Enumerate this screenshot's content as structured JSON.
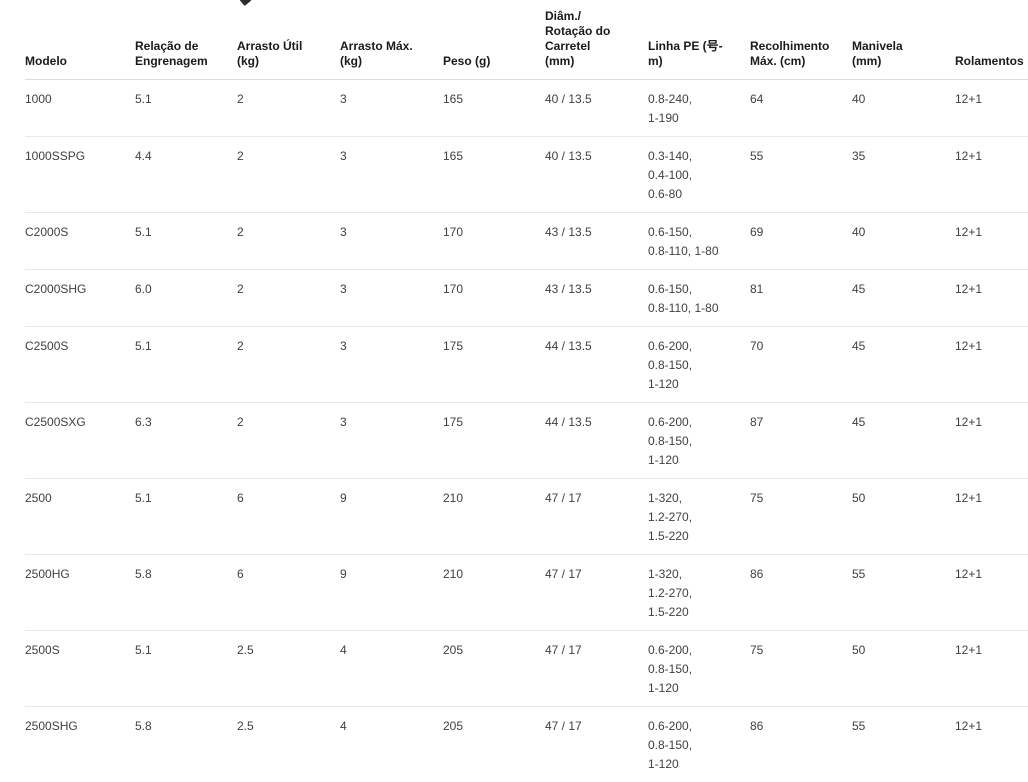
{
  "table": {
    "columns": [
      "Modelo",
      "Relação de\nEngrenagem",
      "Arrasto Útil\n(kg)",
      "Arrasto Máx.\n(kg)",
      "Peso (g)",
      "Diâm./\nRotação do\nCarretel\n(mm)",
      "Linha PE (号-\nm)",
      "Recolhimento\nMáx. (cm)",
      "Manivela\n(mm)",
      "Rolamentos"
    ],
    "rows": [
      [
        "1000",
        "5.1",
        "2",
        "3",
        "165",
        "40 / 13.5",
        "0.8-240,\n1-190",
        "64",
        "40",
        "12+1"
      ],
      [
        "1000SSPG",
        "4.4",
        "2",
        "3",
        "165",
        "40 / 13.5",
        "0.3-140,\n0.4-100,\n0.6-80",
        "55",
        "35",
        "12+1"
      ],
      [
        "C2000S",
        "5.1",
        "2",
        "3",
        "170",
        "43 / 13.5",
        "0.6-150,\n0.8-110, 1-80",
        "69",
        "40",
        "12+1"
      ],
      [
        "C2000SHG",
        "6.0",
        "2",
        "3",
        "170",
        "43 / 13.5",
        "0.6-150,\n0.8-110, 1-80",
        "81",
        "45",
        "12+1"
      ],
      [
        "C2500S",
        "5.1",
        "2",
        "3",
        "175",
        "44 / 13.5",
        "0.6-200,\n0.8-150,\n1-120",
        "70",
        "45",
        "12+1"
      ],
      [
        "C2500SXG",
        "6.3",
        "2",
        "3",
        "175",
        "44 / 13.5",
        "0.6-200,\n0.8-150,\n1-120",
        "87",
        "45",
        "12+1"
      ],
      [
        "2500",
        "5.1",
        "6",
        "9",
        "210",
        "47 / 17",
        "1-320,\n1.2-270,\n1.5-220",
        "75",
        "50",
        "12+1"
      ],
      [
        "2500HG",
        "5.8",
        "6",
        "9",
        "210",
        "47 / 17",
        "1-320,\n1.2-270,\n1.5-220",
        "86",
        "55",
        "12+1"
      ],
      [
        "2500S",
        "5.1",
        "2.5",
        "4",
        "205",
        "47 / 17",
        "0.6-200,\n0.8-150,\n1-120",
        "75",
        "50",
        "12+1"
      ],
      [
        "2500SHG",
        "5.8",
        "2.5",
        "4",
        "205",
        "47 / 17",
        "0.6-200,\n0.8-150,\n1-120",
        "86",
        "55",
        "12+1"
      ]
    ],
    "colors": {
      "background": "#ffffff",
      "header_text": "#1a1a1a",
      "cell_text": "#404040",
      "header_border": "#dcdcdc",
      "row_border": "#e9e9e9"
    }
  }
}
